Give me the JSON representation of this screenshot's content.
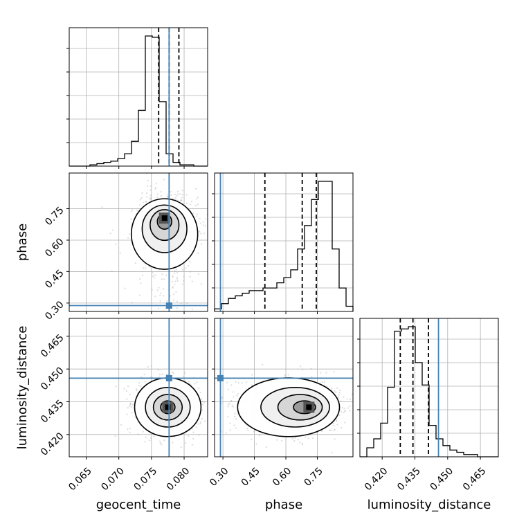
{
  "figure": {
    "type": "corner-plot",
    "colors": {
      "truth": "#4682b4",
      "hist": "#000000",
      "grid": "#b0b0b0",
      "scatter": "#9a9a9a"
    }
  },
  "chart_data": {
    "type": "corner",
    "parameters": [
      {
        "name": "geocent_time",
        "label": "geocent_time",
        "range": [
          0.0624,
          0.0836
        ],
        "ticks": [
          "0.065",
          "0.070",
          "0.075",
          "0.080"
        ],
        "truth": 0.0777,
        "quantiles": [
          0.0761,
          0.0777,
          0.0792
        ],
        "hist": {
          "bin_edges_start": 0.0624,
          "bin_width": 0.00106,
          "counts": [
            0,
            0,
            0,
            1,
            2,
            3,
            4,
            6,
            10,
            20,
            45,
            105,
            104,
            52,
            10,
            3,
            1,
            1,
            0,
            0
          ]
        }
      },
      {
        "name": "phase",
        "label": "phase",
        "range": [
          0.26,
          0.92
        ],
        "ticks": [
          "0.30",
          "0.45",
          "0.60",
          "0.75"
        ],
        "truth": 0.288,
        "quantiles": [
          0.5,
          0.678,
          0.745
        ],
        "hist": {
          "bin_edges_start": 0.26,
          "bin_width": 0.033,
          "counts": [
            1,
            3,
            5,
            6,
            7,
            8,
            8,
            9,
            9,
            11,
            13,
            16,
            24,
            33,
            43,
            50,
            50,
            24,
            9,
            2
          ]
        }
      },
      {
        "name": "luminosity_distance",
        "label": "luminosity_distance",
        "range": [
          0.4098,
          0.4732
        ],
        "ticks": [
          "0.420",
          "0.435",
          "0.450",
          "0.465"
        ],
        "truth": 0.4458,
        "quantiles": [
          0.4283,
          0.4341,
          0.4412
        ],
        "hist": {
          "bin_edges_start": 0.4098,
          "bin_width": 0.00317,
          "counts": [
            0,
            4,
            8,
            15,
            31,
            56,
            57,
            58,
            42,
            32,
            14,
            8,
            5,
            3,
            2,
            1,
            1,
            0,
            0,
            0
          ]
        }
      }
    ],
    "joint": [
      {
        "x": "geocent_time",
        "y": "phase",
        "mode": [
          0.077,
          0.705
        ],
        "spread": [
          0.0017,
          0.045
        ]
      },
      {
        "x": "geocent_time",
        "y": "luminosity_distance",
        "mode": [
          0.0775,
          0.4325
        ],
        "spread": [
          0.0017,
          0.0045
        ]
      },
      {
        "x": "phase",
        "y": "luminosity_distance",
        "mode": [
          0.71,
          0.4325
        ],
        "spread": [
          0.065,
          0.0045
        ]
      }
    ]
  }
}
